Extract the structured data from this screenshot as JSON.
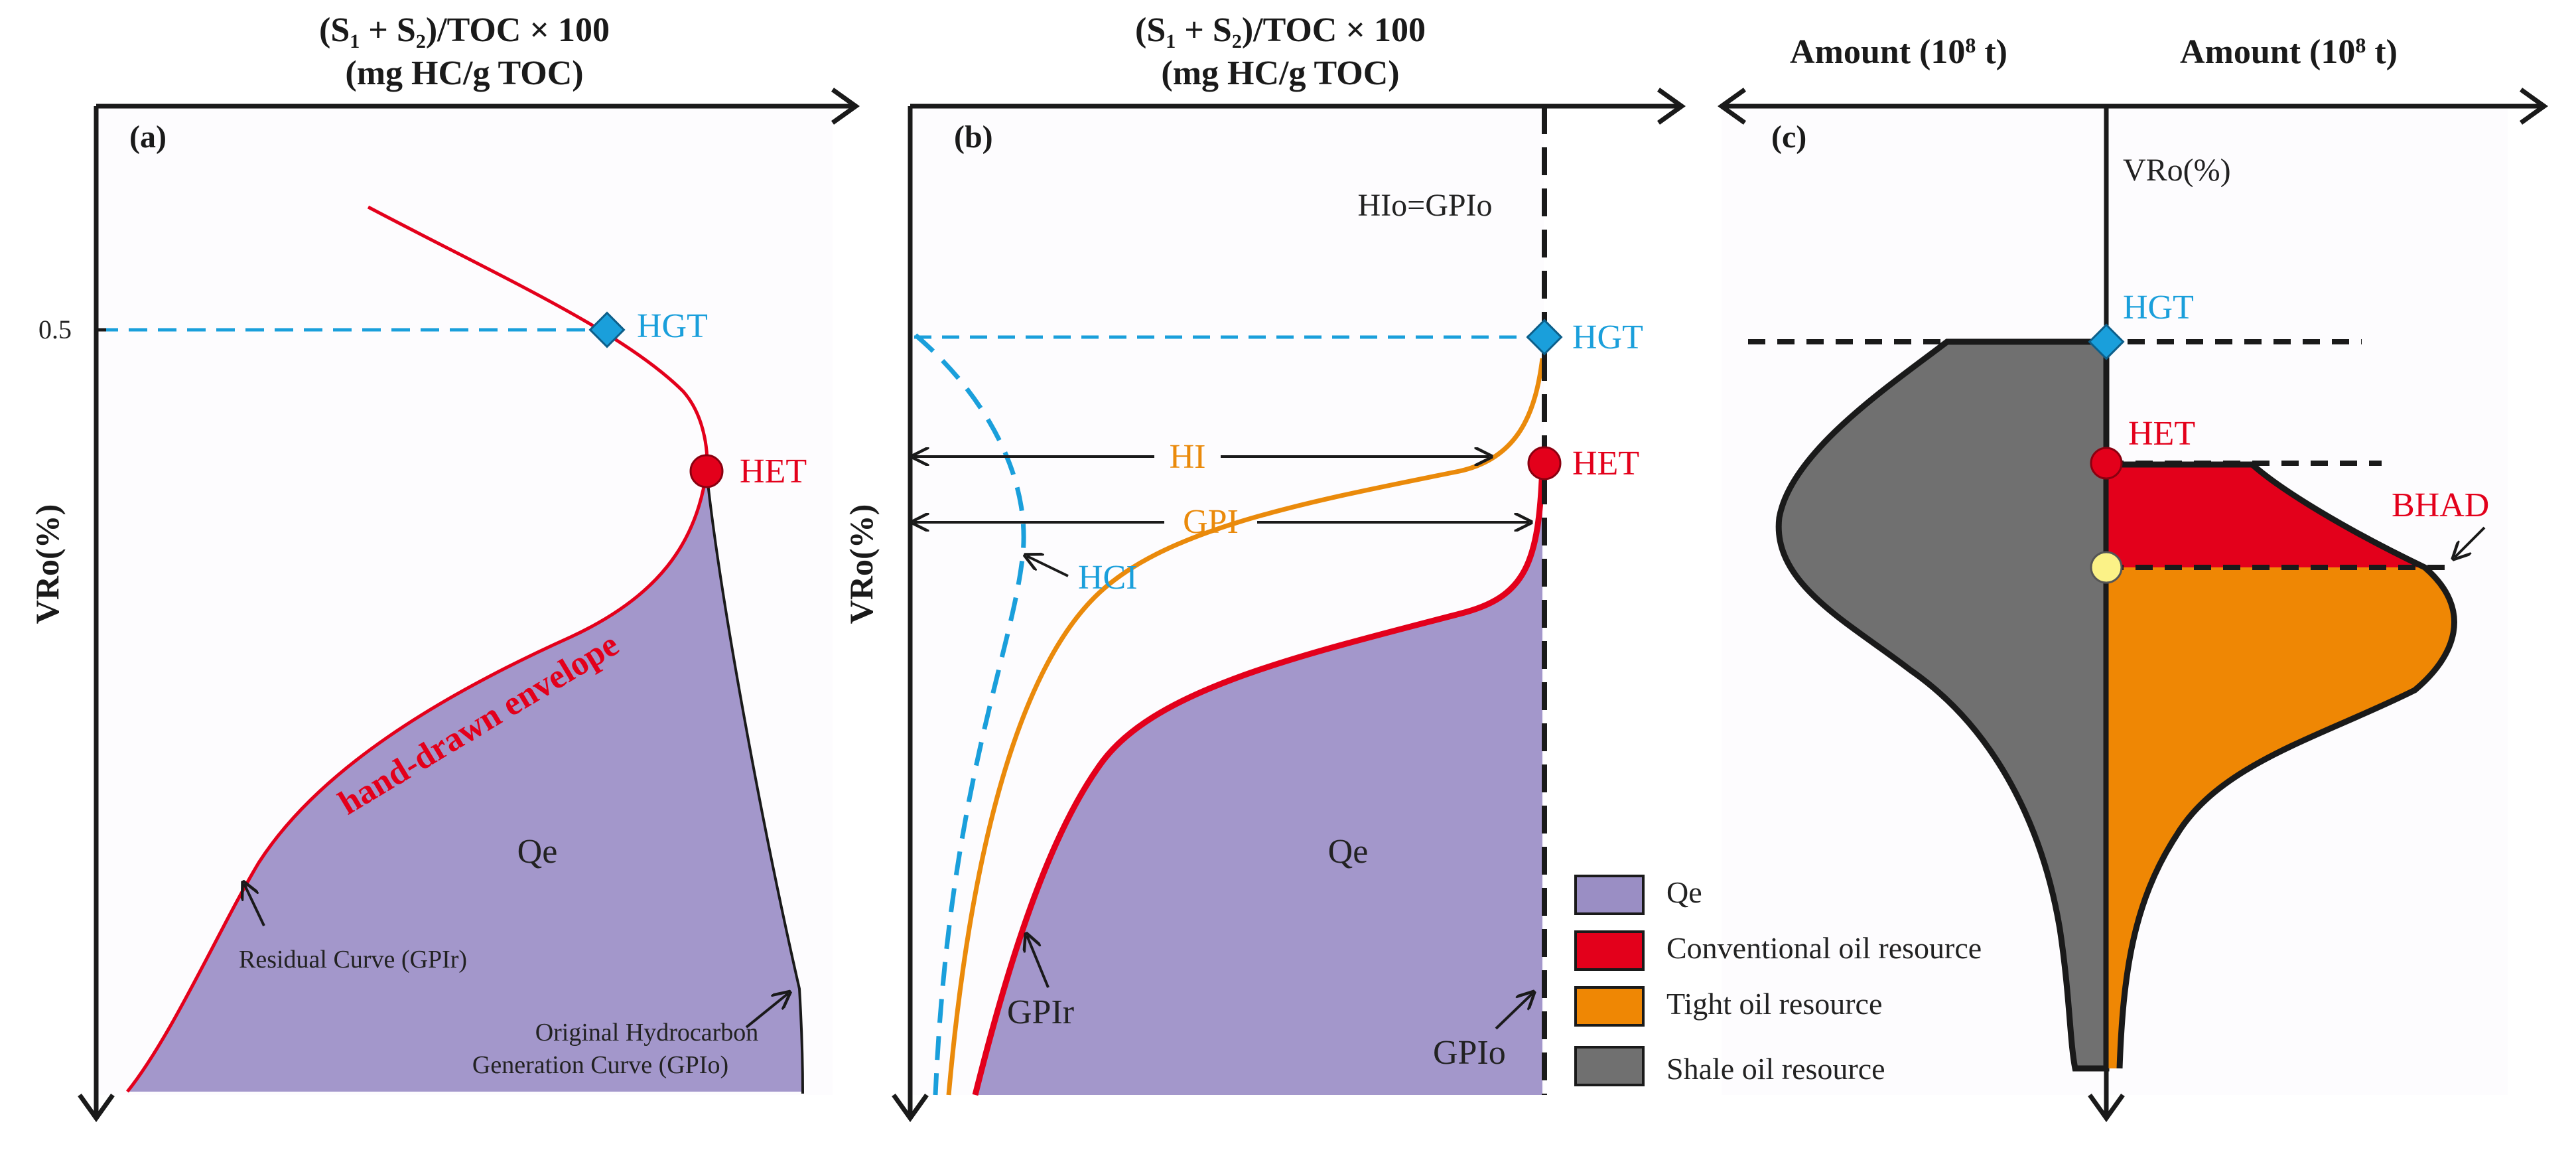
{
  "colors": {
    "purple_fill": "#a397cb",
    "red_curve": "#e3001b",
    "blue": "#1a9fdb",
    "orange": "#ea8a0b",
    "orange_fill": "#ef8704",
    "gray_fill": "#707070",
    "yellow_marker": "#fbf287",
    "panel_bg": "#fdfcfe",
    "axis": "#1a1a1a"
  },
  "panel_a": {
    "label": "(a)",
    "x_title_line1": "(S",
    "x_title_sub1": "1",
    "x_title_mid": " + S",
    "x_title_sub2": "2",
    "x_title_end": ")/TOC × 100",
    "x_title_line2": "(mg HC/g TOC)",
    "y_title": "VRo(%)",
    "tick_05": "0.5",
    "hgt": "HGT",
    "het": "HET",
    "envelope": "hand-drawn envelope",
    "qe": "Qe",
    "residual": "Residual  Curve (GPIr)",
    "original_line1": "Original Hydrocarbon",
    "original_line2": "Generation Curve (GPIo)"
  },
  "panel_b": {
    "label": "(b)",
    "x_title_line1": "(S",
    "x_title_sub1": "1",
    "x_title_mid": " + S",
    "x_title_sub2": "2",
    "x_title_end": ")/TOC × 100",
    "x_title_line2": "(mg  HC/g TOC)",
    "y_title": "VRo(%)",
    "hio_gpio": "HIo=GPIo",
    "hgt": "HGT",
    "het": "HET",
    "hi": "HI",
    "gpi": "GPI",
    "hci": "HCI",
    "qe": "Qe",
    "gpir": "GPIr",
    "gpio": "GPIo"
  },
  "panel_c": {
    "label": "(c)",
    "amount_left_main": "Amount (10",
    "amount_left_sup": "8",
    "amount_left_end": " t)",
    "amount_right_main": "Amount (10",
    "amount_right_sup": "8",
    "amount_right_end": " t)",
    "vro": "VRo(%)",
    "hgt": "HGT",
    "het": "HET",
    "bhad": "BHAD"
  },
  "legend": {
    "items": [
      {
        "label": "Qe",
        "color": "#9a8ec4"
      },
      {
        "label": "Conventional oil resource",
        "color": "#e3001b"
      },
      {
        "label": "Tight oil resource",
        "color": "#ef8704"
      },
      {
        "label": "Shale oil resource",
        "color": "#707070"
      }
    ]
  }
}
